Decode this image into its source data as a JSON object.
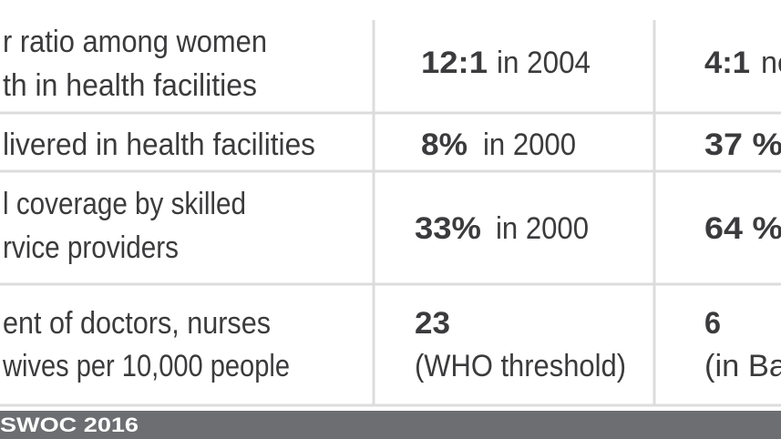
{
  "table": {
    "rows": [
      [
        {
          "lines": [
            "r ratio among women",
            "th in health facilities"
          ]
        },
        {
          "strong": "12:1",
          "rest": "in 2004"
        },
        {
          "strong": "4:1",
          "rest": "ne"
        }
      ],
      [
        {
          "lines": [
            "livered in health facilities"
          ]
        },
        {
          "strong": "8%",
          "rest": "in 2000"
        },
        {
          "strong": "37 %"
        }
      ],
      [
        {
          "lines": [
            "l coverage by skilled",
            "rvice providers"
          ]
        },
        {
          "strong": "33%",
          "rest": "in 2000"
        },
        {
          "strong": "64 %"
        }
      ],
      [
        {
          "lines": [
            "ent of doctors, nurses",
            "wives per 10,000 people"
          ]
        },
        {
          "strong": "23",
          "note": "(WHO threshold)"
        },
        {
          "strong": "6",
          "note": "(in Ba"
        }
      ]
    ]
  },
  "footer": {
    "source": "SWOC 2016"
  }
}
